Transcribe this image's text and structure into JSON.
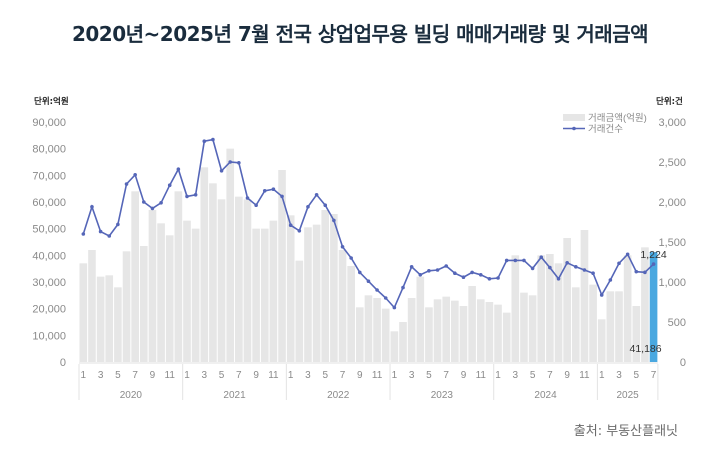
{
  "title": "2020년~2025년 7월 전국 상업업무용 빌딩 매매거래량 및 거래금액",
  "left_unit": "단위:억원",
  "right_unit": "단위:건",
  "source": "출처: 부동산플래닛",
  "colors": {
    "bar": "#e6e6e6",
    "bar_highlight": "#4aa8e0",
    "line": "#5566b8",
    "axis_text": "#8a8a8a"
  },
  "chart_data": {
    "type": "bar+line",
    "title": "2020년~2025년 7월 전국 상업업무용 빌딩 매매거래량 및 거래금액",
    "x_years": [
      "2020",
      "2021",
      "2022",
      "2023",
      "2024",
      "2025"
    ],
    "x_month_ticks": [
      "1",
      "3",
      "5",
      "7",
      "9",
      "11"
    ],
    "x_month_ticks_2025": [
      "1",
      "3",
      "5",
      "7"
    ],
    "y_left": {
      "label": "단위:억원",
      "min": 0,
      "max": 90000,
      "ticks": [
        "0",
        "10,000",
        "20,000",
        "30,000",
        "40,000",
        "50,000",
        "60,000",
        "70,000",
        "80,000",
        "90,000"
      ]
    },
    "y_right": {
      "label": "단위:건",
      "min": 0,
      "max": 3000,
      "ticks": [
        "0",
        "500",
        "1,000",
        "1,500",
        "2,000",
        "2,500",
        "3,000"
      ]
    },
    "legend": [
      {
        "name": "거래금액(억원)",
        "type": "bar"
      },
      {
        "name": "거래건수",
        "type": "line"
      }
    ],
    "legend_position": "top-right",
    "series": [
      {
        "name": "거래금액(억원)",
        "axis": "left",
        "type": "bar",
        "values": [
          37000,
          42000,
          32000,
          32500,
          28000,
          41500,
          64000,
          43500,
          57000,
          52000,
          47500,
          64000,
          53000,
          50000,
          73000,
          67000,
          61000,
          80000,
          62000,
          61000,
          50000,
          50000,
          53000,
          72000,
          55000,
          38000,
          50500,
          51500,
          57000,
          55500,
          42000,
          36000,
          20500,
          25000,
          24000,
          20000,
          11500,
          15000,
          24000,
          32000,
          20500,
          23500,
          24500,
          23000,
          21000,
          28500,
          23500,
          22500,
          21500,
          18500,
          40000,
          26000,
          25000,
          40000,
          40500,
          37000,
          46500,
          28000,
          49500,
          29000,
          16000,
          26500,
          26500,
          40000,
          21000,
          43000,
          41186
        ]
      },
      {
        "name": "거래건수",
        "axis": "right",
        "type": "line",
        "values": [
          1600,
          1940,
          1630,
          1575,
          1720,
          2225,
          2340,
          2000,
          1920,
          1990,
          2210,
          2410,
          2070,
          2090,
          2760,
          2780,
          2390,
          2500,
          2490,
          2050,
          1960,
          2140,
          2160,
          2070,
          1710,
          1640,
          1940,
          2090,
          1960,
          1770,
          1440,
          1300,
          1120,
          1010,
          900,
          800,
          680,
          930,
          1190,
          1090,
          1140,
          1150,
          1200,
          1110,
          1060,
          1120,
          1090,
          1040,
          1050,
          1270,
          1270,
          1270,
          1170,
          1310,
          1180,
          1040,
          1240,
          1190,
          1150,
          1110,
          838,
          1025,
          1233,
          1346,
          1129,
          1121,
          1224
        ]
      }
    ],
    "annotations": [
      {
        "text": "1,224",
        "at": "2025-07 line"
      },
      {
        "text": "41,186",
        "at": "2025-07 bar"
      }
    ],
    "highlight": "2025-07",
    "grid": false
  }
}
